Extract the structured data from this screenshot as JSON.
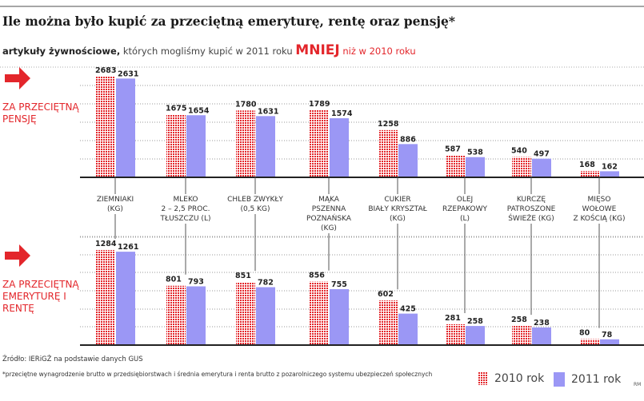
{
  "title": "Ile można było kupić za przeciętną emeryturę, rentę oraz pensję*",
  "subtitle": {
    "bold": "artykuły żywnościowe,",
    "middle": "których mogliśmy kupić w 2011 roku",
    "emph": "MNIEJ",
    "end": "niż w 2010 roku"
  },
  "colors": {
    "accent": "#e3262b",
    "y2010": "#e3262b",
    "y2011": "#9b97f5"
  },
  "sections": {
    "top": "ZA PRZECIĘTNĄ PENSJĘ",
    "bottom": "ZA PRZECIĘTNĄ EMERYTURĘ I RENTĘ"
  },
  "icons": {
    "section_arrow": "arrow-right-icon"
  },
  "source": "Źródło: IERiGŻ na podstawie danych GUS",
  "footnote": "*przeciętne wynagrodzenie brutto w przedsiębiorstwach i średnia emerytura i renta brutto z pozarolniczego systemu ubezpieczeń społecznych",
  "credit": "RM",
  "chart_data": [
    {
      "type": "bar",
      "title": "ZA PRZECIĘTNĄ PENSJĘ",
      "categories": [
        "ZIEMNIAKI (KG)",
        "MLEKO 2 – 2,5 PROC. TŁUSZCZU (L)",
        "CHLEB ZWYKŁY (0,5 KG)",
        "MĄKA PSZENNA POZNAŃSKA (KG)",
        "CUKIER BIAŁY KRYSZTAŁ (KG)",
        "OLEJ RZEPAKOWY (L)",
        "KURCZĘ PATROSZONE ŚWIEŻE (KG)",
        "MIĘSO WOŁOWE Z KOŚCIĄ (KG)"
      ],
      "series": [
        {
          "name": "2010 rok",
          "values": [
            2683,
            1675,
            1780,
            1789,
            1258,
            587,
            540,
            168
          ]
        },
        {
          "name": "2011 rok",
          "values": [
            2631,
            1654,
            1631,
            1574,
            886,
            538,
            497,
            162
          ]
        }
      ],
      "grid": true,
      "legend": "bottom-right"
    },
    {
      "type": "bar",
      "title": "ZA PRZECIĘTNĄ EMERYTURĘ I RENTĘ",
      "categories": [
        "ZIEMNIAKI (KG)",
        "MLEKO 2 – 2,5 PROC. TŁUSZCZU (L)",
        "CHLEB ZWYKŁY (0,5 KG)",
        "MĄKA PSZENNA POZNAŃSKA (KG)",
        "CUKIER BIAŁY KRYSZTAŁ (KG)",
        "OLEJ RZEPAKOWY (L)",
        "KURCZĘ PATROSZONE ŚWIEŻE (KG)",
        "MIĘSO WOŁOWE Z KOŚCIĄ (KG)"
      ],
      "series": [
        {
          "name": "2010 rok",
          "values": [
            1284,
            801,
            851,
            856,
            602,
            281,
            258,
            80
          ]
        },
        {
          "name": "2011 rok",
          "values": [
            1261,
            793,
            782,
            755,
            425,
            258,
            238,
            78
          ]
        }
      ],
      "grid": true,
      "legend": "bottom-right"
    }
  ],
  "category_lines": [
    [
      "ZIEMNIAKI",
      "(KG)"
    ],
    [
      "MLEKO",
      "2 – 2,5 PROC.",
      "TŁUSZCZU (L)"
    ],
    [
      "CHLEB ZWYKŁY",
      "(0,5 KG)"
    ],
    [
      "MĄKA",
      "PSZENNA",
      "POZNAŃSKA",
      "(KG)"
    ],
    [
      "CUKIER",
      "BIAŁY KRYSZTAŁ",
      "(KG)"
    ],
    [
      "OLEJ",
      "RZEPAKOWY",
      "(L)"
    ],
    [
      "KURCZĘ",
      "PATROSZONE",
      "ŚWIEŻE (KG)"
    ],
    [
      "MIĘSO",
      "WOŁOWE",
      "Z KOŚCIĄ (KG)"
    ]
  ]
}
